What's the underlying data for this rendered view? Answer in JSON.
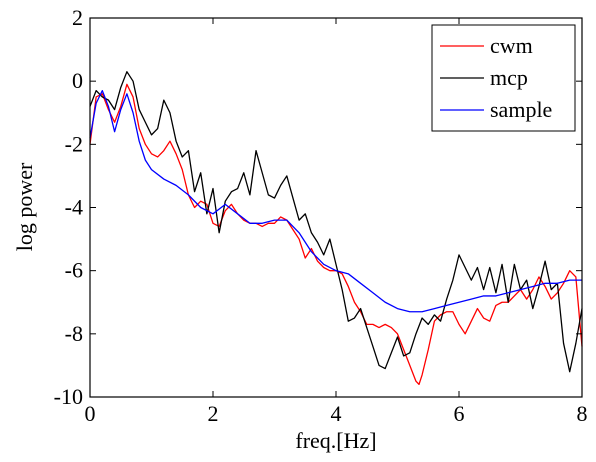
{
  "chart_data": {
    "type": "line",
    "title": "",
    "xlabel": "freq.[Hz]",
    "ylabel": "log power",
    "xlim": [
      0,
      8
    ],
    "ylim": [
      -10,
      2
    ],
    "xticks": [
      0,
      2,
      4,
      6,
      8
    ],
    "yticks": [
      2,
      0,
      -2,
      -4,
      -6,
      -8,
      -10
    ],
    "xtick_labels": [
      "0",
      "2",
      "4",
      "6",
      "8"
    ],
    "ytick_labels": [
      "2",
      "0",
      "-2",
      "-4",
      "-6",
      "-8",
      "-10"
    ],
    "grid": false,
    "legend_position": "top-right",
    "legend": [
      "cwm",
      "mcp",
      "sample"
    ],
    "series": [
      {
        "name": "cwm",
        "color": "#ff0000",
        "x": [
          0.0,
          0.1,
          0.2,
          0.3,
          0.4,
          0.5,
          0.6,
          0.7,
          0.8,
          0.9,
          1.0,
          1.1,
          1.2,
          1.3,
          1.4,
          1.5,
          1.6,
          1.7,
          1.8,
          1.9,
          2.0,
          2.1,
          2.2,
          2.3,
          2.4,
          2.5,
          2.6,
          2.7,
          2.8,
          2.9,
          3.0,
          3.1,
          3.2,
          3.3,
          3.4,
          3.5,
          3.6,
          3.7,
          3.8,
          3.9,
          4.0,
          4.1,
          4.2,
          4.3,
          4.4,
          4.5,
          4.6,
          4.7,
          4.8,
          4.9,
          5.0,
          5.1,
          5.2,
          5.3,
          5.35,
          5.4,
          5.5,
          5.6,
          5.7,
          5.8,
          5.9,
          6.0,
          6.1,
          6.2,
          6.3,
          6.4,
          6.5,
          6.6,
          6.7,
          6.8,
          6.9,
          7.0,
          7.1,
          7.2,
          7.3,
          7.4,
          7.5,
          7.6,
          7.7,
          7.8,
          7.9,
          8.0
        ],
        "y": [
          -2.0,
          -0.5,
          -0.4,
          -0.9,
          -1.3,
          -0.8,
          -0.1,
          -0.5,
          -1.5,
          -2.0,
          -2.3,
          -2.4,
          -2.2,
          -1.9,
          -2.3,
          -2.8,
          -3.6,
          -4.0,
          -3.8,
          -3.9,
          -4.5,
          -4.6,
          -4.1,
          -3.9,
          -4.2,
          -4.4,
          -4.5,
          -4.5,
          -4.6,
          -4.5,
          -4.5,
          -4.3,
          -4.4,
          -4.7,
          -5.0,
          -5.6,
          -5.3,
          -5.7,
          -5.9,
          -6.0,
          -6.0,
          -6.1,
          -6.5,
          -7.0,
          -7.3,
          -7.7,
          -7.7,
          -7.8,
          -7.7,
          -7.8,
          -8.0,
          -8.5,
          -9.0,
          -9.5,
          -9.6,
          -9.3,
          -8.5,
          -7.6,
          -7.4,
          -7.3,
          -7.3,
          -7.7,
          -8.0,
          -7.6,
          -7.2,
          -7.5,
          -7.6,
          -7.1,
          -7.0,
          -7.0,
          -6.8,
          -6.6,
          -6.9,
          -6.6,
          -6.2,
          -6.5,
          -6.9,
          -6.7,
          -6.4,
          -6.0,
          -6.2,
          -8.4
        ]
      },
      {
        "name": "mcp",
        "color": "#000000",
        "x": [
          0.0,
          0.1,
          0.2,
          0.3,
          0.4,
          0.5,
          0.6,
          0.7,
          0.8,
          0.9,
          1.0,
          1.1,
          1.2,
          1.3,
          1.4,
          1.5,
          1.6,
          1.7,
          1.8,
          1.9,
          2.0,
          2.1,
          2.2,
          2.3,
          2.4,
          2.5,
          2.6,
          2.7,
          2.8,
          2.9,
          3.0,
          3.1,
          3.2,
          3.3,
          3.4,
          3.5,
          3.6,
          3.7,
          3.8,
          3.9,
          4.0,
          4.1,
          4.2,
          4.3,
          4.4,
          4.5,
          4.6,
          4.7,
          4.8,
          4.9,
          5.0,
          5.1,
          5.2,
          5.3,
          5.4,
          5.5,
          5.6,
          5.7,
          5.8,
          5.9,
          6.0,
          6.1,
          6.2,
          6.3,
          6.4,
          6.5,
          6.6,
          6.7,
          6.8,
          6.9,
          7.0,
          7.1,
          7.2,
          7.3,
          7.4,
          7.5,
          7.6,
          7.7,
          7.8,
          7.9,
          8.0
        ],
        "y": [
          -0.8,
          -0.3,
          -0.5,
          -0.6,
          -0.9,
          -0.2,
          0.3,
          0.0,
          -0.9,
          -1.3,
          -1.7,
          -1.5,
          -0.6,
          -1.0,
          -1.9,
          -2.4,
          -2.2,
          -3.5,
          -2.9,
          -4.2,
          -3.4,
          -4.8,
          -3.8,
          -3.5,
          -3.4,
          -2.9,
          -3.6,
          -2.2,
          -2.9,
          -3.6,
          -3.7,
          -3.3,
          -3.0,
          -3.7,
          -4.4,
          -4.2,
          -4.8,
          -5.1,
          -5.5,
          -5.0,
          -5.8,
          -6.6,
          -7.6,
          -7.5,
          -7.2,
          -7.8,
          -8.4,
          -9.0,
          -9.1,
          -8.6,
          -8.1,
          -8.7,
          -8.6,
          -8.0,
          -7.5,
          -7.7,
          -7.4,
          -7.6,
          -6.9,
          -6.3,
          -5.5,
          -5.9,
          -6.3,
          -5.9,
          -6.6,
          -5.9,
          -6.7,
          -5.8,
          -7.0,
          -5.8,
          -6.6,
          -6.3,
          -7.2,
          -6.5,
          -5.7,
          -6.6,
          -6.4,
          -8.3,
          -9.2,
          -8.3,
          -7.2
        ]
      },
      {
        "name": "sample",
        "color": "#0000ff",
        "x": [
          0.0,
          0.1,
          0.2,
          0.3,
          0.4,
          0.5,
          0.6,
          0.7,
          0.8,
          0.9,
          1.0,
          1.2,
          1.4,
          1.6,
          1.8,
          2.0,
          2.2,
          2.4,
          2.6,
          2.8,
          3.0,
          3.2,
          3.4,
          3.6,
          3.8,
          4.0,
          4.2,
          4.4,
          4.6,
          4.8,
          5.0,
          5.2,
          5.4,
          5.6,
          5.8,
          6.0,
          6.2,
          6.4,
          6.6,
          6.8,
          7.0,
          7.2,
          7.4,
          7.6,
          7.8,
          8.0
        ],
        "y": [
          -1.8,
          -0.7,
          -0.3,
          -0.8,
          -1.6,
          -0.9,
          -0.4,
          -1.0,
          -1.9,
          -2.5,
          -2.8,
          -3.1,
          -3.3,
          -3.6,
          -4.0,
          -4.2,
          -3.9,
          -4.2,
          -4.5,
          -4.5,
          -4.4,
          -4.4,
          -4.8,
          -5.4,
          -5.8,
          -6.0,
          -6.1,
          -6.4,
          -6.7,
          -7.0,
          -7.2,
          -7.3,
          -7.3,
          -7.2,
          -7.1,
          -7.0,
          -6.9,
          -6.8,
          -6.8,
          -6.7,
          -6.6,
          -6.5,
          -6.4,
          -6.4,
          -6.3,
          -6.3
        ]
      }
    ]
  }
}
